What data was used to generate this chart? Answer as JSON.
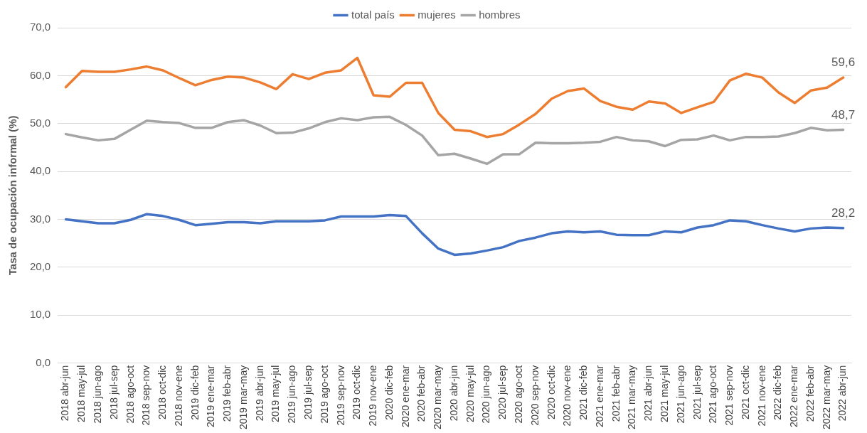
{
  "chart_data": {
    "type": "line",
    "ylabel": "Tasa de ocupación informal (%)",
    "categories": [
      "2018 abr-jun",
      "2018 may-jul",
      "2018 jun-ago",
      "2018 jul-sep",
      "2018 ago-oct",
      "2018 sep-nov",
      "2018 oct-dic",
      "2018 nov-ene",
      "2019 dic-feb",
      "2019 ene-mar",
      "2019 feb-abr",
      "2019 mar-may",
      "2019 abr-jun",
      "2019 may-jul",
      "2019 jun-ago",
      "2019 jul-sep",
      "2019 ago-oct",
      "2019 sep-nov",
      "2019 oct-dic",
      "2019 nov-ene",
      "2020 dic-feb",
      "2020 ene-mar",
      "2020 feb-abr",
      "2020 mar-may",
      "2020 abr-jun",
      "2020 may-jul",
      "2020 jun-ago",
      "2020 jul-sep",
      "2020 ago-oct",
      "2020 sep-nov",
      "2020 oct-dic",
      "2020 nov-ene",
      "2021 dic-feb",
      "2021 ene-mar",
      "2021 feb-abr",
      "2021 mar-may",
      "2021 abr-jun",
      "2021 may-jul",
      "2021 jun-ago",
      "2021 jul-sep",
      "2021 ago-oct",
      "2021 sep-nov",
      "2021 oct-dic",
      "2021 nov-ene",
      "2022 dic-feb",
      "2022 ene-mar",
      "2022 feb-abr",
      "2022 mar-may",
      "2022 abr-jun"
    ],
    "series": [
      {
        "name": "total país",
        "color": "#4472c4",
        "values": [
          30.0,
          29.6,
          29.2,
          29.2,
          29.9,
          31.1,
          30.7,
          29.9,
          28.8,
          29.1,
          29.4,
          29.4,
          29.2,
          29.6,
          29.6,
          29.6,
          29.8,
          30.6,
          30.6,
          30.6,
          30.9,
          30.7,
          27.1,
          23.9,
          22.6,
          22.9,
          23.5,
          24.2,
          25.5,
          26.2,
          27.1,
          27.5,
          27.3,
          27.5,
          26.8,
          26.7,
          26.7,
          27.5,
          27.3,
          28.3,
          28.8,
          29.8,
          29.6,
          28.8,
          28.1,
          27.5,
          28.1,
          28.3,
          28.2
        ],
        "value_labels": [
          null,
          null,
          null,
          null,
          null,
          null,
          null,
          null,
          null,
          null,
          null,
          null,
          null,
          null,
          null,
          null,
          null,
          null,
          null,
          null,
          null,
          null,
          null,
          null,
          null,
          null,
          null,
          null,
          null,
          null,
          null,
          null,
          null,
          null,
          null,
          null,
          null,
          null,
          null,
          null,
          null,
          null,
          null,
          null,
          null,
          null,
          null,
          null,
          "28,2"
        ]
      },
      {
        "name": "mujeres",
        "color": "#ed7d31",
        "values": [
          57.6,
          61.0,
          60.8,
          60.8,
          61.3,
          61.9,
          61.1,
          59.5,
          58.0,
          59.1,
          59.8,
          59.6,
          58.6,
          57.2,
          60.3,
          59.3,
          60.6,
          61.1,
          63.7,
          55.9,
          55.6,
          58.5,
          58.5,
          52.2,
          48.7,
          48.4,
          47.2,
          47.8,
          49.8,
          52.0,
          55.2,
          56.8,
          57.3,
          54.7,
          53.5,
          52.9,
          54.6,
          54.2,
          52.2,
          53.4,
          54.5,
          59.0,
          60.4,
          59.6,
          56.5,
          54.3,
          56.9,
          57.5,
          59.6
        ],
        "value_labels": [
          null,
          null,
          null,
          null,
          null,
          null,
          null,
          null,
          null,
          null,
          null,
          null,
          null,
          null,
          null,
          null,
          null,
          null,
          null,
          null,
          null,
          null,
          null,
          null,
          null,
          null,
          null,
          null,
          null,
          null,
          null,
          null,
          null,
          null,
          null,
          null,
          null,
          null,
          null,
          null,
          null,
          null,
          null,
          null,
          null,
          null,
          null,
          null,
          "59,6"
        ]
      },
      {
        "name": "hombres",
        "color": "#a5a5a5",
        "values": [
          47.8,
          47.1,
          46.5,
          46.8,
          48.7,
          50.6,
          50.3,
          50.1,
          49.1,
          49.1,
          50.3,
          50.7,
          49.6,
          48.0,
          48.1,
          49.0,
          50.3,
          51.1,
          50.7,
          51.3,
          51.4,
          49.7,
          47.5,
          43.4,
          43.7,
          42.7,
          41.6,
          43.6,
          43.6,
          46.0,
          45.9,
          45.9,
          46.0,
          46.2,
          47.2,
          46.5,
          46.3,
          45.3,
          46.6,
          46.7,
          47.5,
          46.5,
          47.2,
          47.2,
          47.3,
          48.0,
          49.1,
          48.6,
          48.7
        ],
        "value_labels": [
          null,
          null,
          null,
          null,
          null,
          null,
          null,
          null,
          null,
          null,
          null,
          null,
          null,
          null,
          null,
          null,
          null,
          null,
          null,
          null,
          null,
          null,
          null,
          null,
          null,
          null,
          null,
          null,
          null,
          null,
          null,
          null,
          null,
          null,
          null,
          null,
          null,
          null,
          null,
          null,
          null,
          null,
          null,
          null,
          null,
          null,
          null,
          null,
          "48,7"
        ]
      }
    ],
    "ylim": [
      0,
      70
    ],
    "yticks": [
      {
        "value": 0,
        "label": "0,0"
      },
      {
        "value": 10,
        "label": "10,0"
      },
      {
        "value": 20,
        "label": "20,0"
      },
      {
        "value": 30,
        "label": "30,0"
      },
      {
        "value": 40,
        "label": "40,0"
      },
      {
        "value": 50,
        "label": "50,0"
      },
      {
        "value": 60,
        "label": "60,0"
      },
      {
        "value": 70,
        "label": "70,0"
      }
    ],
    "grid": "y",
    "legend": "top",
    "marker": "none",
    "line_style": "solid"
  }
}
